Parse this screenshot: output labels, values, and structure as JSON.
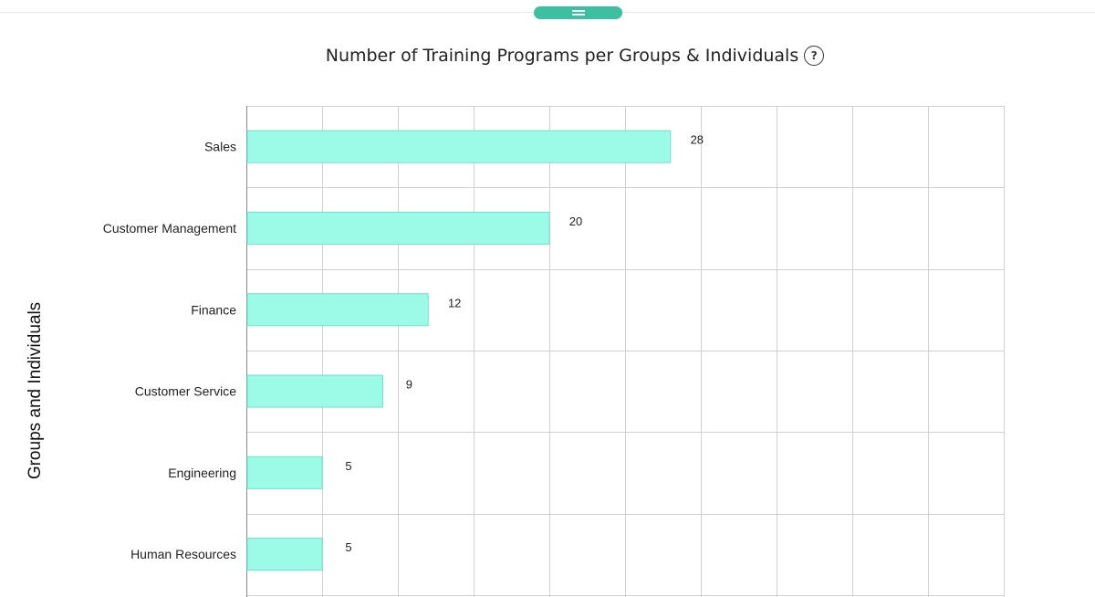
{
  "chart_data": {
    "type": "bar",
    "orientation": "horizontal",
    "title": "Number of Training Programs per Groups & Individuals",
    "ylabel": "Groups and Individuals",
    "xlabel": "",
    "categories": [
      "Sales",
      "Customer Management",
      "Finance",
      "Customer Service",
      "Engineering",
      "Human Resources"
    ],
    "values": [
      28,
      20,
      12,
      9,
      5,
      5
    ],
    "xlim": [
      0,
      50
    ],
    "grid": true,
    "bar_color": "#9bfbe7",
    "bar_border_color": "#6fe0c8"
  },
  "header": {
    "help_glyph": "?",
    "handle_color": "#3dbfa2"
  }
}
